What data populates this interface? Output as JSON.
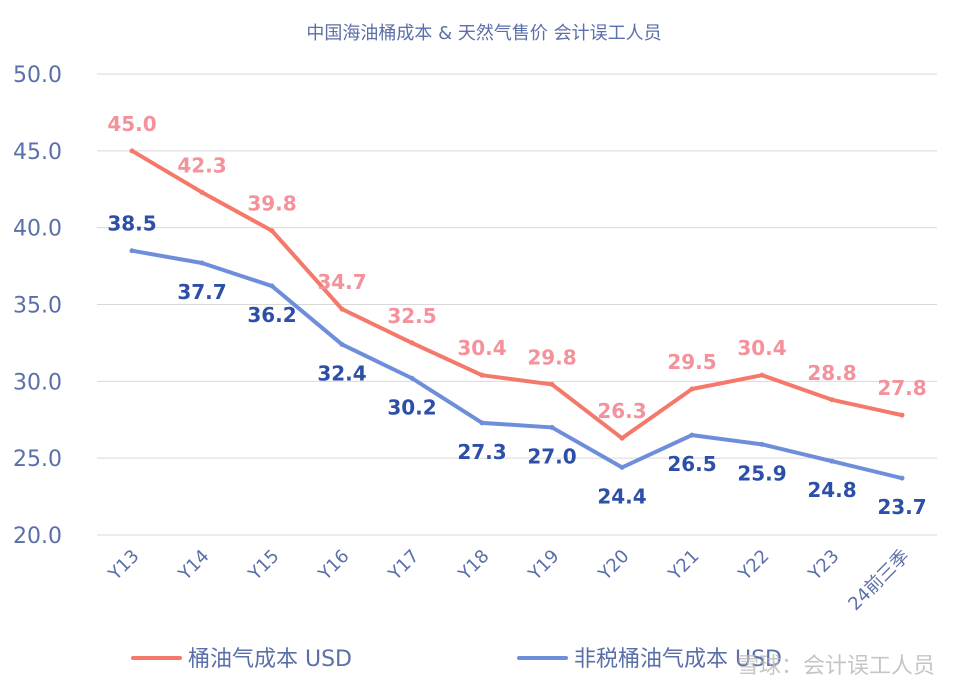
{
  "chart_data": {
    "type": "line",
    "title": "中国海油桶成本 & 天然气售价 会计误工人员",
    "categories": [
      "Y13",
      "Y14",
      "Y15",
      "Y16",
      "Y17",
      "Y18",
      "Y19",
      "Y20",
      "Y21",
      "Y22",
      "Y23",
      "24前三季"
    ],
    "ylim": [
      20,
      50
    ],
    "yticks": [
      "20.0",
      "25.0",
      "30.0",
      "35.0",
      "40.0",
      "45.0",
      "50.0"
    ],
    "grid": true,
    "legend_position": "bottom",
    "series": [
      {
        "name": "桶油气成本 USD",
        "color": "#F4796A",
        "label_color": "#F4929C",
        "values": [
          45.0,
          42.3,
          39.8,
          34.7,
          32.5,
          30.4,
          29.8,
          26.3,
          29.5,
          30.4,
          28.8,
          27.8
        ],
        "labels": [
          "45.0",
          "42.3",
          "39.8",
          "34.7",
          "32.5",
          "30.4",
          "29.8",
          "26.3",
          "29.5",
          "30.4",
          "28.8",
          "27.8"
        ]
      },
      {
        "name": "非税桶油气成本 USD",
        "color": "#6E8EDB",
        "label_color": "#2E4FA8",
        "values": [
          38.5,
          37.7,
          36.2,
          32.4,
          30.2,
          27.3,
          27.0,
          24.4,
          26.5,
          25.9,
          24.8,
          23.7
        ],
        "labels": [
          "38.5",
          "37.7",
          "36.2",
          "32.4",
          "30.2",
          "27.3",
          "27.0",
          "24.4",
          "26.5",
          "25.9",
          "24.8",
          "23.7"
        ]
      }
    ],
    "axis_color": "#5B6FA8",
    "grid_color": "#D9D9D9"
  },
  "watermark": "雪球：会计误工人员"
}
